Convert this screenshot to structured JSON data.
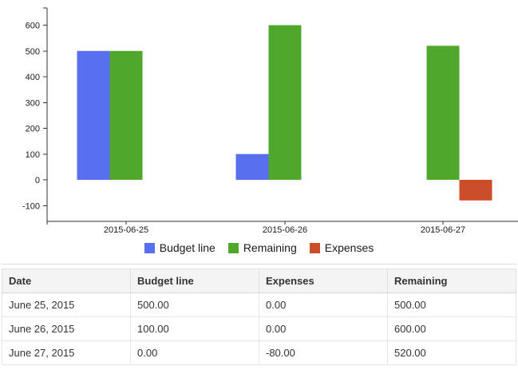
{
  "chart_data": {
    "type": "bar",
    "title": "",
    "xlabel": "",
    "ylabel": "",
    "categories": [
      "2015-06-25",
      "2015-06-26",
      "2015-06-27"
    ],
    "series": [
      {
        "name": "Budget line",
        "color": "#586ff0",
        "values": [
          500,
          100,
          0
        ]
      },
      {
        "name": "Remaining",
        "color": "#4fa72b",
        "values": [
          500,
          600,
          520
        ]
      },
      {
        "name": "Expenses",
        "color": "#cb4d29",
        "values": [
          0,
          0,
          -80
        ]
      }
    ],
    "yticks": [
      -100,
      0,
      100,
      200,
      300,
      400,
      500,
      600
    ],
    "ylim": [
      -160,
      665
    ],
    "grid": false,
    "legend_position": "bottom",
    "axis_color": "#333333",
    "label_color": "#1a1a1a"
  },
  "table": {
    "headers": [
      "Date",
      "Budget line",
      "Expenses",
      "Remaining"
    ],
    "rows": [
      [
        "June 25, 2015",
        "500.00",
        "0.00",
        "500.00"
      ],
      [
        "June 26, 2015",
        "100.00",
        "0.00",
        "600.00"
      ],
      [
        "June 27, 2015",
        "0.00",
        "-80.00",
        "520.00"
      ]
    ]
  }
}
